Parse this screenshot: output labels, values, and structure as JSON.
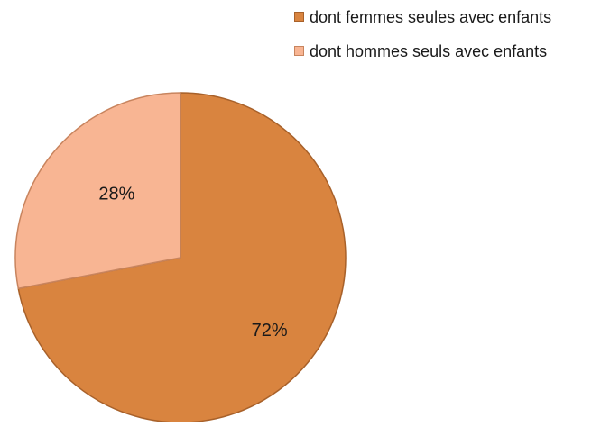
{
  "chart_data": {
    "type": "pie",
    "title": "",
    "legend_position": "top-right",
    "series": [
      {
        "name": "dont femmes seules avec enfants",
        "value": 72,
        "label": "72%",
        "color": "#D9843F",
        "stroke": "#A8612A"
      },
      {
        "name": "dont hommes seuls avec enfants",
        "value": 28,
        "label": "28%",
        "color": "#F8B593",
        "stroke": "#C8845E"
      }
    ]
  }
}
